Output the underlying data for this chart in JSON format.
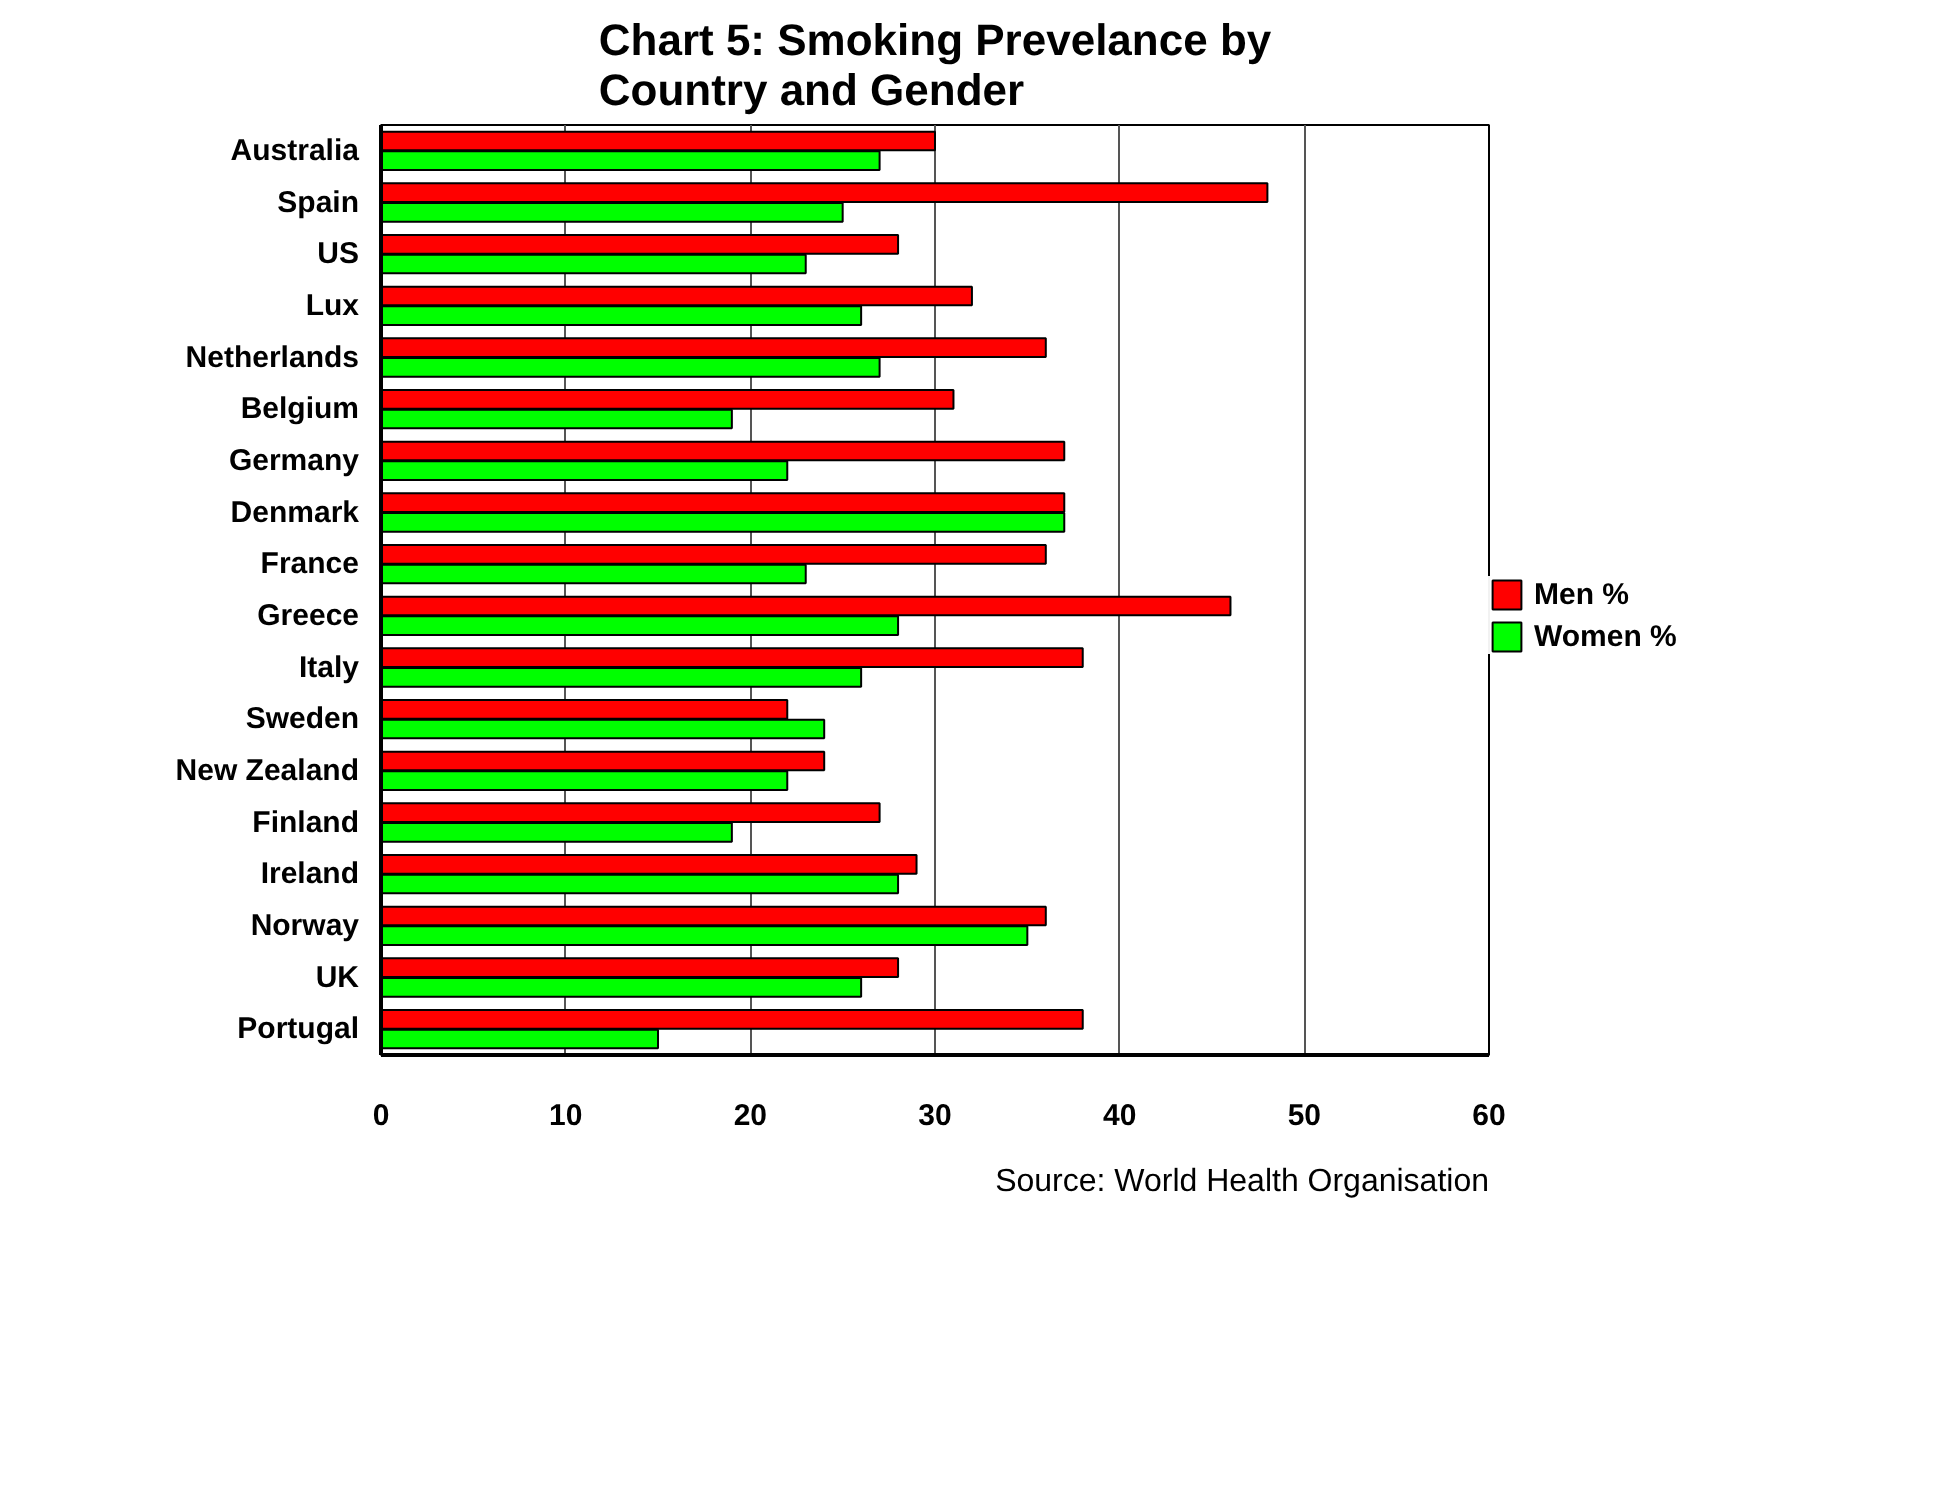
{
  "chart_data": {
    "type": "bar",
    "orientation": "horizontal",
    "title": "Chart 5: Smoking Prevelance by\nCountry and Gender",
    "categories": [
      "Australia",
      "Spain",
      "US",
      "Lux",
      "Netherlands",
      "Belgium",
      "Germany",
      "Denmark",
      "France",
      "Greece",
      "Italy",
      "Sweden",
      "New Zealand",
      "Finland",
      "Ireland",
      "Norway",
      "UK",
      "Portugal"
    ],
    "series": [
      {
        "name": "Men %",
        "color": "#ff0000",
        "values": [
          30,
          48,
          28,
          32,
          36,
          31,
          37,
          37,
          36,
          46,
          38,
          22,
          24,
          27,
          29,
          36,
          28,
          38
        ]
      },
      {
        "name": "Women %",
        "color": "#00ff00",
        "values": [
          27,
          25,
          23,
          26,
          27,
          19,
          22,
          37,
          23,
          28,
          26,
          24,
          22,
          19,
          28,
          35,
          26,
          15
        ]
      }
    ],
    "xlim": [
      0,
      60
    ],
    "xticks": [
      0,
      10,
      20,
      30,
      40,
      50,
      60
    ],
    "grid": "x",
    "legend": "right",
    "annotations": [
      "Source: World Health Organisation"
    ]
  }
}
